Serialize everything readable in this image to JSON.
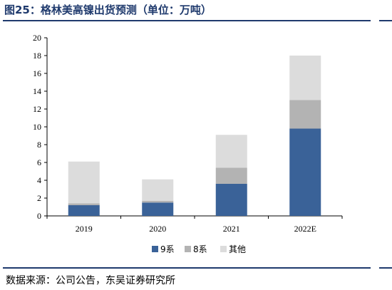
{
  "title": "图25：格林美高镍出货预测（单位：万吨）",
  "source": "数据来源：公司公告，东吴证券研究所",
  "chart_data": {
    "type": "bar",
    "stacked": true,
    "categories": [
      "2019",
      "2020",
      "2021",
      "2022E"
    ],
    "series": [
      {
        "name": "9系",
        "color": "#3a6298",
        "values": [
          1.2,
          1.5,
          3.6,
          9.8
        ]
      },
      {
        "name": "8系",
        "color": "#b3b3b3",
        "values": [
          0.2,
          0.2,
          1.8,
          3.2
        ]
      },
      {
        "name": "其他",
        "color": "#dcdcdc",
        "values": [
          4.7,
          2.4,
          3.7,
          5.0
        ]
      }
    ],
    "ylim": [
      0,
      20
    ],
    "yticks": [
      0,
      2,
      4,
      6,
      8,
      10,
      12,
      14,
      16,
      18,
      20
    ],
    "xlabel": "",
    "ylabel": "",
    "grid": false,
    "legend_position": "bottom"
  }
}
